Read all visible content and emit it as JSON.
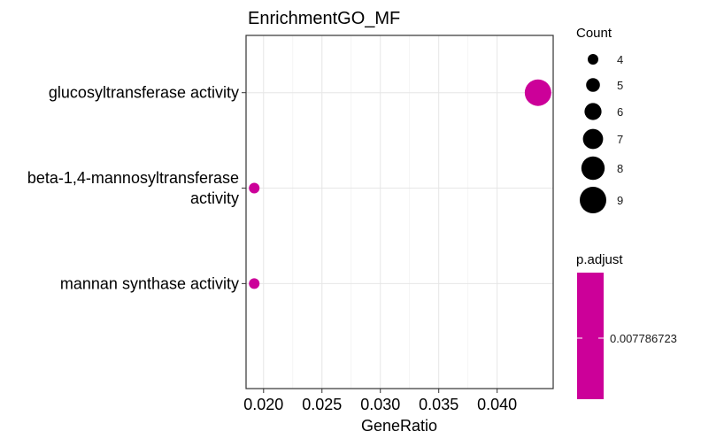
{
  "chart_data": {
    "type": "scatter",
    "title": "EnrichmentGO_MF",
    "xlabel": "GeneRatio",
    "ylabel": "",
    "xlim": [
      0.0185,
      0.0448
    ],
    "x_ticks": [
      0.02,
      0.025,
      0.03,
      0.035,
      0.04
    ],
    "x_tick_labels": [
      "0.020",
      "0.025",
      "0.030",
      "0.035",
      "0.040"
    ],
    "categories": [
      {
        "lines": [
          "glucosyltransferase activity"
        ]
      },
      {
        "lines": [
          "beta-1,4-mannosyltransferase",
          "activity"
        ]
      },
      {
        "lines": [
          "mannan synthase activity"
        ]
      }
    ],
    "points": [
      {
        "x": 0.0435,
        "count": 9,
        "p_adjust": 0.007786723
      },
      {
        "x": 0.0192,
        "count": 4,
        "p_adjust": 0.007786723
      },
      {
        "x": 0.0192,
        "count": 4,
        "p_adjust": 0.007786723
      }
    ],
    "point_color": "#CC0099",
    "grid": true,
    "legend_placement": "right",
    "size_legend": {
      "title": "Count",
      "values": [
        4,
        5,
        6,
        7,
        8,
        9
      ],
      "labels": [
        "4",
        "5",
        "6",
        "7",
        "8",
        "9"
      ]
    },
    "color_legend": {
      "title": "p.adjust",
      "tick_labels": [
        "0.007786723"
      ],
      "color": "#CC0099"
    }
  }
}
